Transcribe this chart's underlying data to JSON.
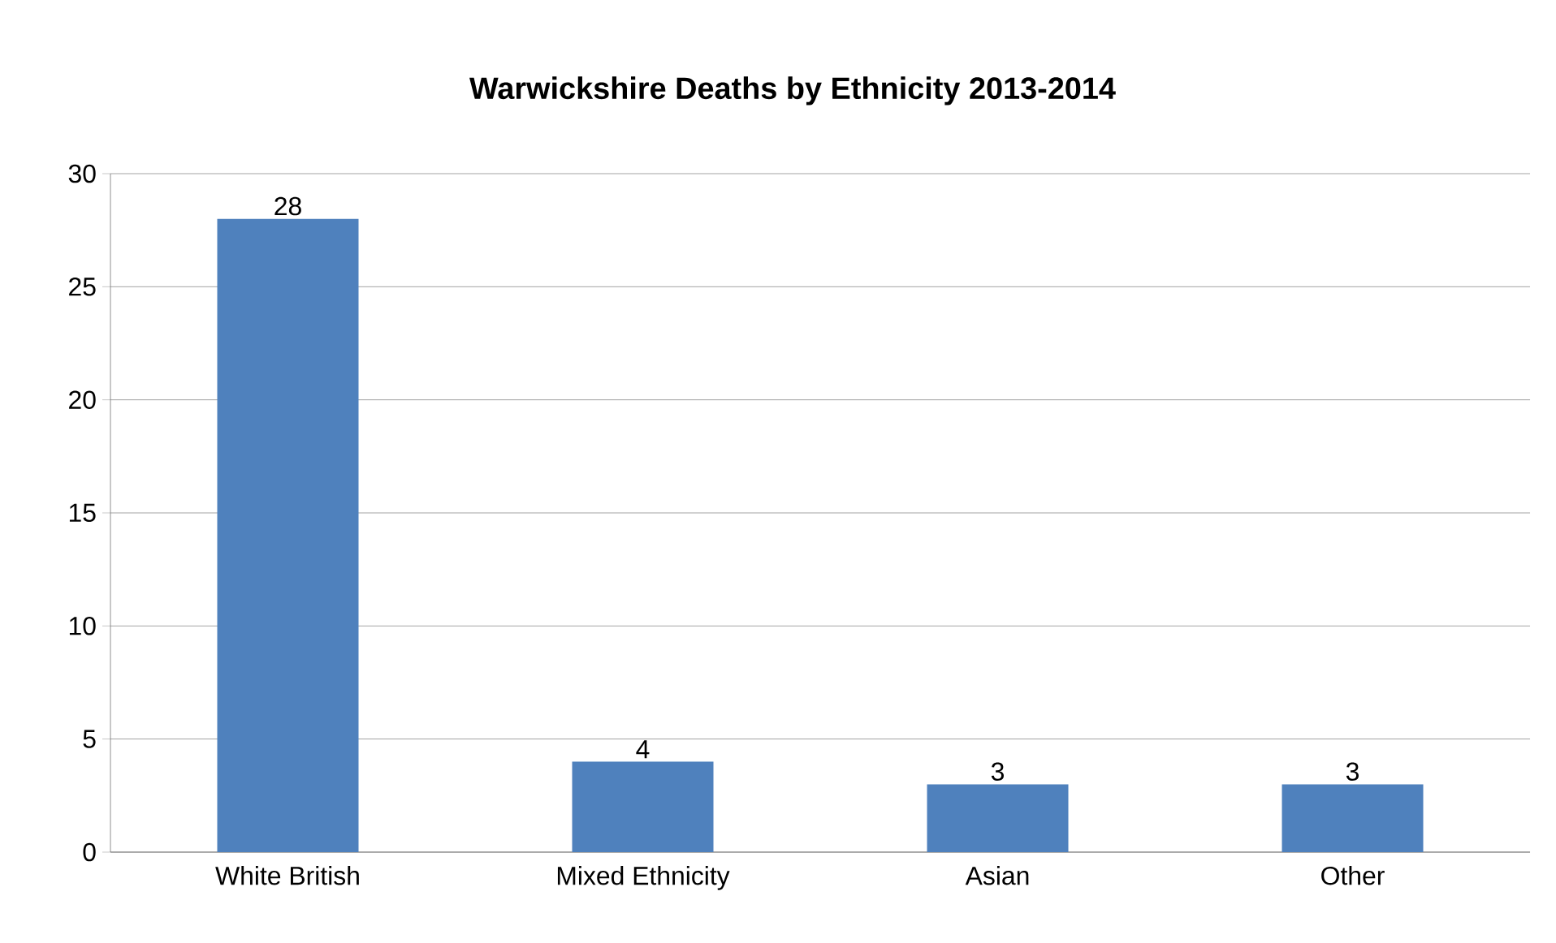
{
  "chart_data": {
    "type": "bar",
    "title": "Warwickshire Deaths by Ethnicity 2013-2014",
    "categories": [
      "White British",
      "Mixed Ethnicity",
      "Asian",
      "Other"
    ],
    "values": [
      28,
      4,
      3,
      3
    ],
    "color": "#4f81bd",
    "ylim": [
      0,
      30
    ],
    "yticks": [
      0,
      5,
      10,
      15,
      20,
      25,
      30
    ],
    "grid": "y",
    "data_labels": true
  }
}
